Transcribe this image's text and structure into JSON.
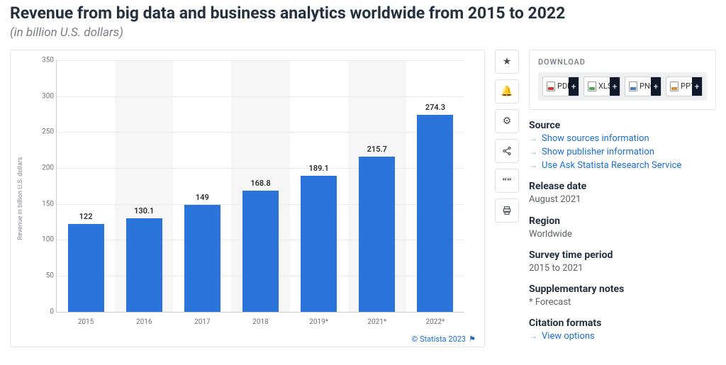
{
  "title": "Revenue from big data and business analytics worldwide from 2015 to 2022",
  "subtitle": "(in billion U.S. dollars)",
  "chart": {
    "type": "bar",
    "y_axis_label": "Revenue in billion U.S. dollars",
    "ylim": [
      0,
      350
    ],
    "ytick_step": 50,
    "yticks": [
      0,
      50,
      100,
      150,
      200,
      250,
      300,
      350
    ],
    "categories": [
      "2015",
      "2016",
      "2017",
      "2018",
      "2019*",
      "2021*",
      "2022*"
    ],
    "values": [
      122,
      130.1,
      149,
      168.8,
      189.1,
      215.7,
      274.3
    ],
    "value_labels": [
      "122",
      "130.1",
      "149",
      "168.8",
      "189.1",
      "215.7",
      "274.3"
    ],
    "bar_color": "#2b74dc",
    "band_color": "#f6f6f7",
    "grid_color": "#e9eaec",
    "axis_color": "#c9cbce",
    "label_fontsize": 11,
    "tick_fontsize": 10,
    "credit": "© Statista 2023"
  },
  "toolbar": {
    "star": "★",
    "bell": "🔔",
    "gear": "⚙",
    "share": "✤",
    "quote": "❝",
    "print": "🖶"
  },
  "download": {
    "heading": "DOWNLOAD",
    "buttons": [
      {
        "label": "PDF",
        "accent": "#d13a2e"
      },
      {
        "label": "XLS",
        "accent": "#4aa84a"
      },
      {
        "label": "PNG",
        "accent": "#3a7bd1"
      },
      {
        "label": "PPT",
        "accent": "#e0882f"
      }
    ]
  },
  "meta": {
    "source_h": "Source",
    "source_links": [
      "Show sources information",
      "Show publisher information",
      "Use Ask Statista Research Service"
    ],
    "release_h": "Release date",
    "release_v": "August 2021",
    "region_h": "Region",
    "region_v": "Worldwide",
    "survey_h": "Survey time period",
    "survey_v": "2015 to 2021",
    "supp_h": "Supplementary notes",
    "supp_v": "* Forecast",
    "cite_h": "Citation formats",
    "cite_link": "View options"
  }
}
